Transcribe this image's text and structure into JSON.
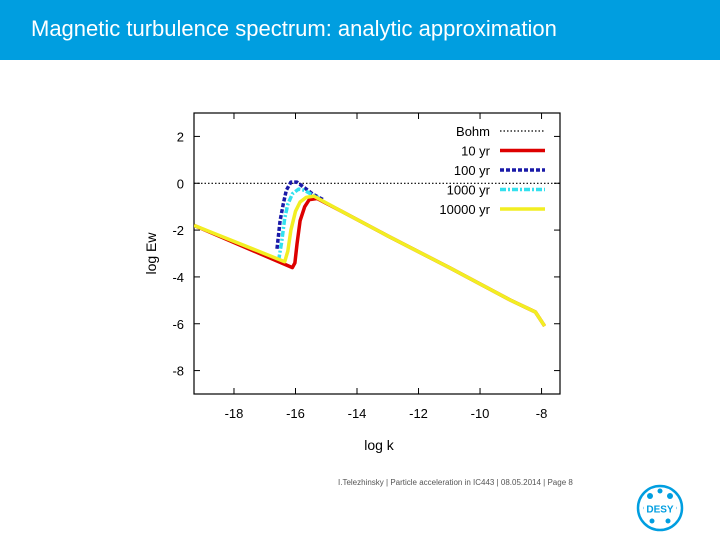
{
  "slide": {
    "title": "Magnetic turbulence spectrum: analytic approximation",
    "footer": "I.Telezhinsky | Particle acceleration in IC443 | 08.05.2014 | Page 8",
    "logo_text": "DESY",
    "colors": {
      "title_bar": "#009ee0",
      "title_text": "#ffffff",
      "logo": "#009ee0"
    }
  },
  "chart_data": {
    "type": "line",
    "title": "",
    "xlabel": "log k",
    "ylabel": "log Ew",
    "xlim": [
      -19.3,
      -7.4
    ],
    "ylim": [
      -9.0,
      3.0
    ],
    "xticks": [
      -18,
      -16,
      -14,
      -12,
      -10,
      -8
    ],
    "yticks": [
      2,
      0,
      -2,
      -4,
      -6,
      -8
    ],
    "legend_position": "top-right",
    "series": [
      {
        "name": "Bohm",
        "color": "#000000",
        "style": "dotted",
        "x": [
          -19.3,
          -7.4
        ],
        "y": [
          0,
          0
        ]
      },
      {
        "name": "10 yr",
        "color": "#dd0000",
        "style": "solid",
        "x": [
          -19.3,
          -16.1,
          -16.02,
          -15.95,
          -15.85,
          -15.7,
          -15.55,
          -15.3,
          -14.5,
          -13,
          -11,
          -9,
          -8.2,
          -7.9
        ],
        "y": [
          -1.8,
          -3.6,
          -3.4,
          -2.6,
          -1.6,
          -1.0,
          -0.7,
          -0.65,
          -1.2,
          -2.25,
          -3.6,
          -5.0,
          -5.5,
          -6.1
        ]
      },
      {
        "name": "100 yr",
        "color": "#1a1aa8",
        "style": "dashed",
        "x": [
          -16.6,
          -16.5,
          -16.4,
          -16.3,
          -16.15,
          -15.95,
          -15.7,
          -15.45,
          -15.25,
          -15.1
        ],
        "y": [
          -2.8,
          -1.6,
          -0.9,
          -0.3,
          0.05,
          0.05,
          -0.2,
          -0.45,
          -0.6,
          -0.7
        ]
      },
      {
        "name": "1000 yr",
        "color": "#33e0ee",
        "style": "dashdot",
        "x": [
          -16.55,
          -16.45,
          -16.35,
          -16.25,
          -16.1,
          -15.9,
          -15.7,
          -15.45,
          -15.25
        ],
        "y": [
          -3.3,
          -2.5,
          -1.5,
          -0.9,
          -0.45,
          -0.25,
          -0.3,
          -0.5,
          -0.62
        ]
      },
      {
        "name": "10000 yr",
        "color": "#f2ee22",
        "style": "solid",
        "x": [
          -19.3,
          -16.35,
          -16.25,
          -16.15,
          -16.0,
          -15.85,
          -15.65,
          -15.4,
          -14.5,
          -13,
          -11,
          -9,
          -8.2,
          -7.9
        ],
        "y": [
          -1.8,
          -3.35,
          -2.9,
          -2.0,
          -1.2,
          -0.8,
          -0.6,
          -0.55,
          -1.2,
          -2.25,
          -3.6,
          -5.0,
          -5.5,
          -6.1
        ]
      }
    ]
  }
}
